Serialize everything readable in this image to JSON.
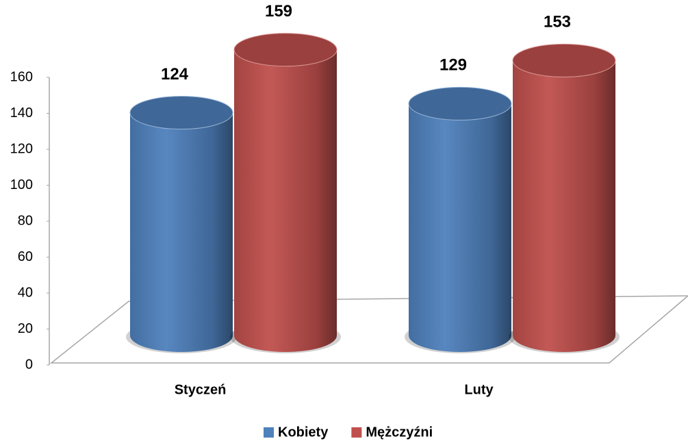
{
  "chart_data": {
    "type": "bar",
    "categories": [
      "Styczeń",
      "Luty"
    ],
    "series": [
      {
        "name": "Kobiety",
        "color": "#4f81bd",
        "values": [
          124,
          129
        ]
      },
      {
        "name": "Mężczyźni",
        "color": "#c0504d",
        "values": [
          159,
          153
        ]
      }
    ],
    "ylim": [
      0,
      160
    ],
    "yticks": [
      0,
      20,
      40,
      60,
      80,
      100,
      120,
      140,
      160
    ],
    "legend": "bottom"
  }
}
